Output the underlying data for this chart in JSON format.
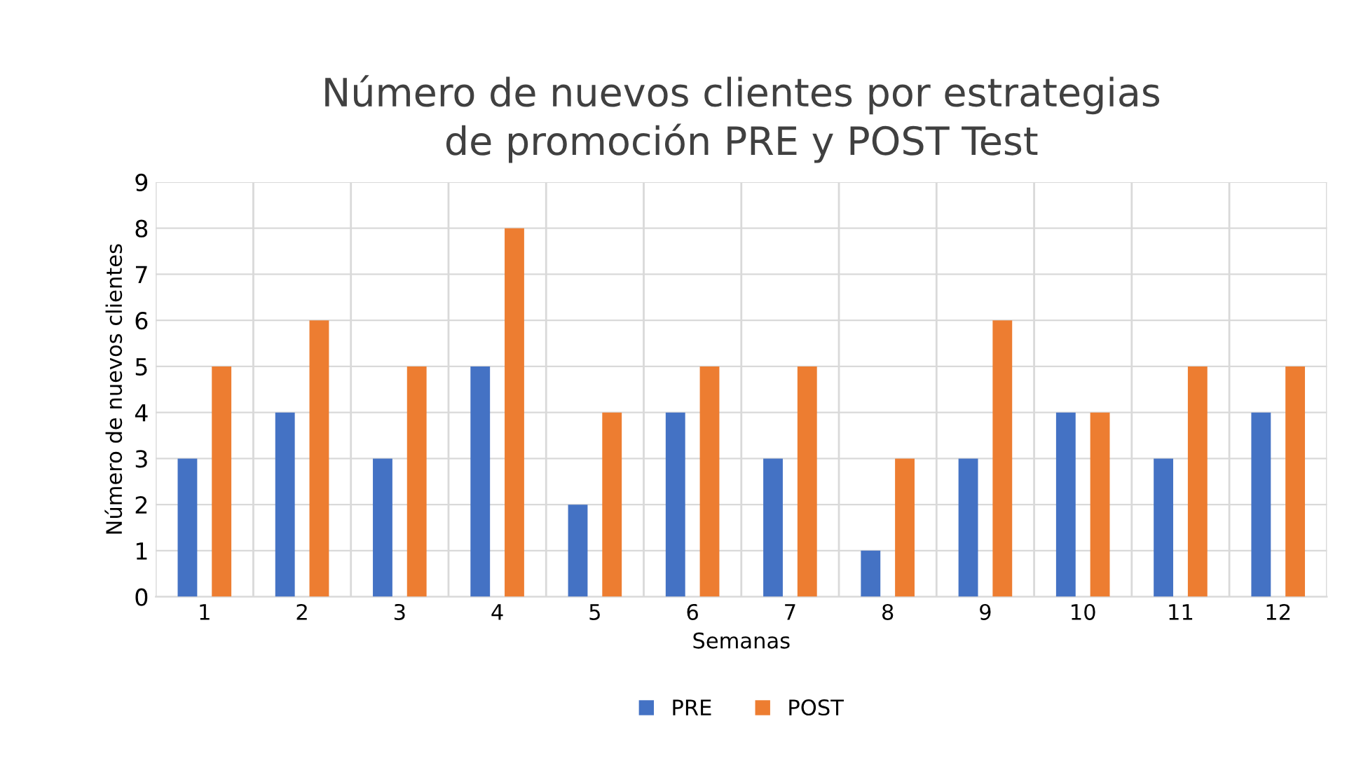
{
  "chart_data": {
    "type": "bar",
    "title": "Número de nuevos clientes por estrategias\nde promoción PRE y POST Test",
    "xlabel": "Semanas",
    "ylabel": "Número de nuevos clientes",
    "categories": [
      "1",
      "2",
      "3",
      "4",
      "5",
      "6",
      "7",
      "8",
      "9",
      "10",
      "11",
      "12"
    ],
    "series": [
      {
        "name": "PRE",
        "color": "#4472c4",
        "values": [
          3,
          4,
          3,
          5,
          2,
          4,
          3,
          1,
          3,
          4,
          3,
          4
        ]
      },
      {
        "name": "POST",
        "color": "#ed7d31",
        "values": [
          5,
          6,
          5,
          8,
          4,
          5,
          5,
          3,
          6,
          4,
          5,
          5
        ]
      }
    ],
    "ylim": [
      0,
      9
    ],
    "yticks": [
      0,
      1,
      2,
      3,
      4,
      5,
      6,
      7,
      8,
      9
    ],
    "grid": true,
    "legend": "bottom"
  }
}
